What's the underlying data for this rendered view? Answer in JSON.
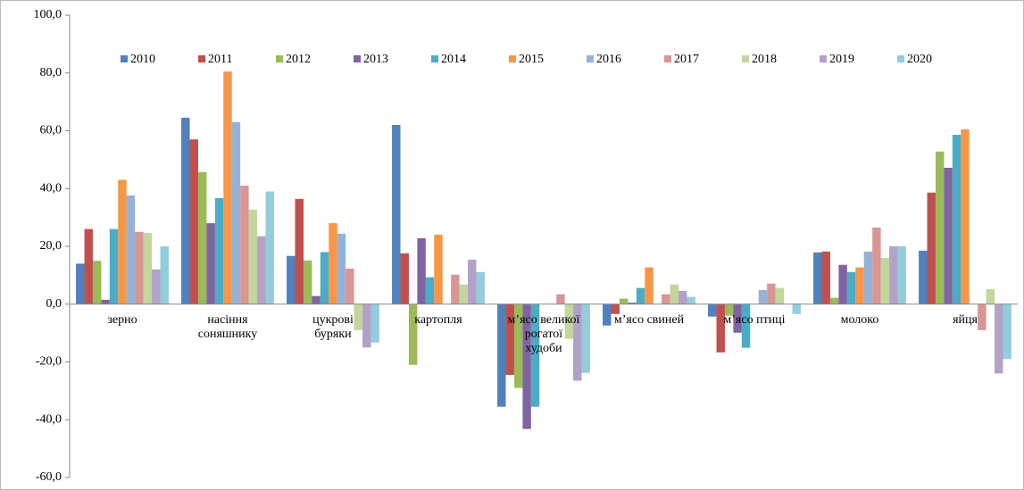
{
  "chart_data": {
    "type": "bar",
    "categories": [
      "зерно",
      "насіння соняшнику",
      "цукрові буряки",
      "картопля",
      "м’ясо великої рогатої худоби",
      "м’ясо свиней",
      "м’ясо птиці",
      "молоко",
      "яйця"
    ],
    "series": [
      {
        "name": "2010",
        "color": "#4F81BD",
        "values": [
          14,
          64.5,
          16.7,
          62,
          -35.5,
          -7.4,
          -4.3,
          17.9,
          18.5
        ]
      },
      {
        "name": "2011",
        "color": "#C0504D",
        "values": [
          26,
          57,
          36.4,
          17.6,
          -24.5,
          -3.4,
          -16.7,
          18.2,
          38.6
        ]
      },
      {
        "name": "2012",
        "color": "#9BBB59",
        "values": [
          15,
          45.7,
          15.1,
          -21,
          -29,
          1.9,
          -4,
          2.2,
          52.8
        ]
      },
      {
        "name": "2013",
        "color": "#8064A2",
        "values": [
          1.5,
          28,
          2.8,
          22.8,
          -43.2,
          0.5,
          -9.9,
          13.6,
          47.2
        ]
      },
      {
        "name": "2014",
        "color": "#4BACC6",
        "values": [
          26,
          36.7,
          18,
          9.3,
          -35.5,
          5.6,
          -15.1,
          11.1,
          58.6
        ]
      },
      {
        "name": "2015",
        "color": "#F79646",
        "values": [
          43,
          80.5,
          28,
          24,
          null,
          12.7,
          null,
          12.7,
          60.5
        ]
      },
      {
        "name": "2016",
        "color": "#95B3D7",
        "values": [
          37.6,
          63,
          24.4,
          null,
          null,
          null,
          4.9,
          18.2,
          null
        ]
      },
      {
        "name": "2017",
        "color": "#D99694",
        "values": [
          25,
          41,
          12.3,
          10.2,
          3.4,
          3.4,
          7.1,
          26.5,
          -9
        ]
      },
      {
        "name": "2018",
        "color": "#C3D69B",
        "values": [
          24.6,
          32.7,
          -9,
          6.8,
          -12,
          6.8,
          5.6,
          16,
          5.2
        ]
      },
      {
        "name": "2019",
        "color": "#B3A2C7",
        "values": [
          12,
          23.5,
          -15,
          15.4,
          -26.5,
          4.6,
          null,
          20,
          -24
        ]
      },
      {
        "name": "2020",
        "color": "#93CDDD",
        "values": [
          20,
          39,
          -13.3,
          11.1,
          -23.8,
          2.5,
          -3.4,
          20,
          -19
        ]
      }
    ],
    "ylim": [
      -60,
      100
    ],
    "yticks": [
      {
        "value": -60,
        "label": "-60,0"
      },
      {
        "value": -40,
        "label": "-40,0"
      },
      {
        "value": -20,
        "label": "-20,0"
      },
      {
        "value": 0,
        "label": "0,0"
      },
      {
        "value": 20,
        "label": "20,0"
      },
      {
        "value": 40,
        "label": "40,0"
      },
      {
        "value": 60,
        "label": "60,0"
      },
      {
        "value": 80,
        "label": "80,0"
      },
      {
        "value": 100,
        "label": "100,0"
      }
    ],
    "legend": "top"
  }
}
